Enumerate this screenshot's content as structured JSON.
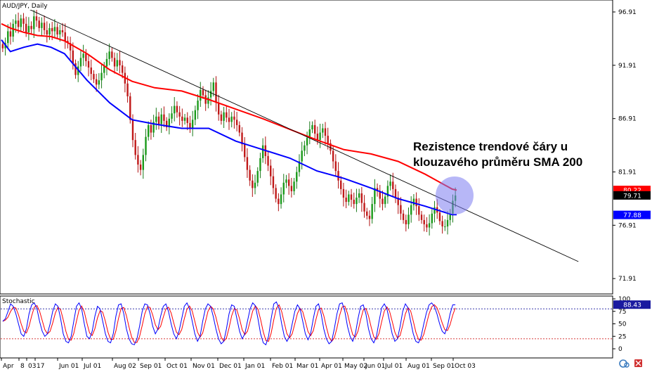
{
  "chart_data": {
    "type": "candlestick",
    "symbol_label": "AUD/JPY, Daily",
    "annotation": [
      "Rezistence trendové čáry u",
      "klouzavého průměru SMA 200"
    ],
    "y_ticks": [
      "96.91",
      "91.91",
      "86.91",
      "81.91",
      "76.91",
      "71.91"
    ],
    "y_tick_values": [
      96.91,
      91.91,
      86.91,
      81.91,
      76.91,
      71.91
    ],
    "ylim": [
      70.6,
      97.9
    ],
    "x_ticks": [
      "Apr",
      "8",
      "03",
      "17",
      "Jun 01",
      "Jul 01",
      "Aug 02",
      "Sep 01",
      "Oct 01",
      "Nov 01",
      "Dec 01",
      "Jan 01",
      "Feb 01",
      "Mar 01",
      "Apr 01",
      "May 02",
      "Jun 01",
      "Jul 01",
      "Aug 01",
      "Sep 01",
      "Oct 03"
    ],
    "price_labels": [
      {
        "text": "80.22",
        "value": 80.22,
        "color": "#ff0000"
      },
      {
        "text": "79.71",
        "value": 79.71,
        "color": "#000000"
      },
      {
        "text": "77.88",
        "value": 77.88,
        "color": "#0000ff"
      }
    ],
    "sma200": {
      "name": "SMA 200",
      "color": "#ff0000",
      "values": [
        95.8,
        95.4,
        95.0,
        94.7,
        94.6,
        94.2,
        93.0,
        91.5,
        90.4,
        89.8,
        89.5,
        88.7,
        87.8,
        86.9,
        85.9,
        84.9,
        84.0,
        83.6,
        82.9,
        81.7,
        80.3,
        80.2
      ]
    },
    "sma100": {
      "name": "SMA 100",
      "color": "#0000ff",
      "values": [
        94.3,
        93.2,
        93.6,
        93.9,
        93.6,
        93.0,
        90.5,
        88.4,
        86.8,
        86.4,
        86.0,
        86.0,
        84.8,
        84.0,
        83.2,
        82.0,
        81.3,
        80.4,
        79.4,
        78.7,
        77.9,
        77.9
      ]
    },
    "sma_x_index": [
      0,
      10,
      25,
      40,
      55,
      70,
      95,
      120,
      145,
      170,
      200,
      230,
      260,
      290,
      320,
      350,
      380,
      410,
      440,
      470,
      500,
      505
    ],
    "trendline": {
      "from": {
        "x": 22,
        "y": 97.5
      },
      "to": {
        "x": 640,
        "y": 73.5
      }
    },
    "candles_close": [
      93.5,
      94.0,
      95.1,
      94.6,
      95.8,
      96.1,
      95.5,
      96.3,
      95.8,
      95.0,
      95.6,
      95.3,
      96.5,
      96.1,
      95.4,
      95.9,
      95.2,
      94.8,
      95.4,
      95.1,
      95.5,
      94.8,
      95.2,
      95.0,
      94.2,
      94.0,
      93.3,
      92.1,
      91.0,
      91.8,
      92.6,
      93.0,
      92.3,
      91.7,
      91.1,
      90.6,
      90.1,
      90.5,
      91.2,
      91.8,
      92.5,
      93.2,
      92.6,
      91.8,
      92.4,
      91.9,
      91.2,
      90.2,
      89.0,
      86.8,
      84.9,
      83.5,
      82.6,
      82.1,
      83.5,
      85.2,
      86.3,
      85.6,
      86.6,
      87.1,
      86.4,
      87.3,
      86.7,
      86.1,
      86.9,
      87.4,
      88.1,
      87.5,
      87.1,
      86.7,
      87.0,
      86.5,
      86.0,
      86.8,
      87.7,
      88.6,
      89.6,
      89.1,
      88.3,
      88.9,
      89.5,
      90.3,
      88.4,
      87.3,
      86.7,
      87.5,
      87.0,
      86.6,
      87.1,
      86.8,
      86.3,
      85.6,
      84.5,
      83.3,
      82.1,
      81.1,
      80.4,
      80.9,
      82.0,
      83.2,
      84.4,
      83.4,
      82.5,
      81.5,
      80.4,
      79.4,
      78.9,
      79.8,
      80.9,
      81.2,
      80.6,
      80.1,
      81.0,
      81.9,
      82.9,
      83.9,
      84.4,
      85.1,
      85.9,
      86.3,
      85.5,
      84.9,
      85.6,
      86.0,
      85.3,
      84.6,
      83.9,
      82.9,
      82.0,
      81.1,
      80.3,
      79.5,
      79.1,
      79.8,
      79.3,
      78.9,
      79.5,
      79.9,
      79.0,
      78.2,
      77.8,
      77.5,
      78.9,
      80.4,
      80.1,
      79.4,
      78.9,
      79.6,
      80.6,
      81.0,
      80.3,
      79.5,
      78.8,
      78.0,
      77.4,
      77.0,
      77.9,
      78.8,
      79.4,
      78.7,
      77.9,
      77.4,
      77.0,
      76.7,
      77.1,
      78.0,
      78.6,
      78.1,
      77.3,
      76.8,
      76.8,
      77.4,
      78.0,
      79.2,
      79.7
    ]
  },
  "stochastic": {
    "label": "Stochastic",
    "y_ticks": [
      "100",
      "75",
      "50",
      "25",
      "0"
    ],
    "y_tick_values": [
      100,
      75,
      50,
      25,
      0
    ],
    "value_label": "88.43",
    "value": 88.43,
    "overbought": 80,
    "oversold": 20,
    "k_color": "#0000ff",
    "d_color": "#ff0000",
    "k": [
      55,
      60,
      75,
      90,
      85,
      70,
      50,
      30,
      25,
      40,
      70,
      88,
      92,
      80,
      55,
      35,
      25,
      30,
      50,
      75,
      90,
      85,
      60,
      30,
      15,
      12,
      25,
      55,
      85,
      92,
      80,
      50,
      25,
      20,
      35,
      65,
      85,
      80,
      55,
      30,
      15,
      12,
      30,
      65,
      88,
      90,
      70,
      40,
      20,
      10,
      8,
      20,
      45,
      75,
      90,
      88,
      70,
      45,
      30,
      40,
      65,
      85,
      90,
      75,
      50,
      30,
      20,
      35,
      60,
      85,
      92,
      80,
      55,
      30,
      15,
      25,
      55,
      80,
      90,
      85,
      65,
      40,
      20,
      10,
      15,
      40,
      70,
      88,
      85,
      60,
      35,
      20,
      30,
      55,
      80,
      92,
      86,
      60,
      30,
      12,
      8,
      25,
      60,
      90,
      94,
      80,
      50,
      25,
      15,
      25,
      50,
      75,
      88,
      80,
      55,
      30,
      18,
      30,
      60,
      85,
      90,
      70,
      40,
      20,
      10,
      15,
      40,
      70,
      90,
      92,
      75,
      45,
      25,
      15,
      30,
      60,
      85,
      88,
      70,
      40,
      20,
      12,
      25,
      55,
      82,
      90,
      80,
      55,
      30,
      15,
      20,
      45,
      75,
      90,
      82,
      55,
      30,
      15,
      12,
      25,
      50,
      72,
      88,
      92,
      85,
      70,
      50,
      35,
      30,
      45,
      70,
      88,
      88
    ]
  },
  "toolbar": {
    "icon_label": "refresh-icon",
    "close_icon": "close-icon"
  }
}
